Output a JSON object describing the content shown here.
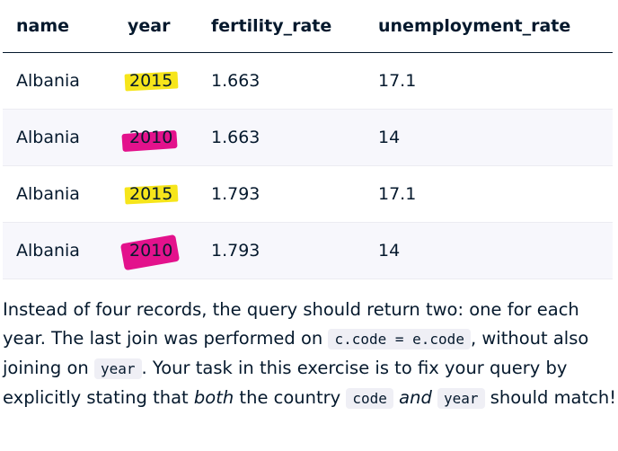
{
  "table": {
    "headers": [
      "name",
      "year",
      "fertility_rate",
      "unemployment_rate"
    ],
    "rows": [
      {
        "name": "Albania",
        "year": "2015",
        "fertility_rate": "1.663",
        "unemployment_rate": "17.1",
        "highlight": "#f6e51b"
      },
      {
        "name": "Albania",
        "year": "2010",
        "fertility_rate": "1.663",
        "unemployment_rate": "14",
        "highlight": "#e3128c"
      },
      {
        "name": "Albania",
        "year": "2015",
        "fertility_rate": "1.793",
        "unemployment_rate": "17.1",
        "highlight": "#f6e51b"
      },
      {
        "name": "Albania",
        "year": "2010",
        "fertility_rate": "1.793",
        "unemployment_rate": "14",
        "highlight": "#e3128c"
      }
    ]
  },
  "paragraph": {
    "t1": "Instead of four records, the query should return two: one for each year. The last join was performed on ",
    "code1": "c.code = e.code",
    "t2": ", without also joining on ",
    "code2": "year",
    "t3": ". Your task in this exercise is to fix your query by explicitly stating that ",
    "em1": "both",
    "t4": " the country ",
    "code3": "code",
    "em2": "and",
    "code4": "year",
    "t5": " should match!"
  }
}
